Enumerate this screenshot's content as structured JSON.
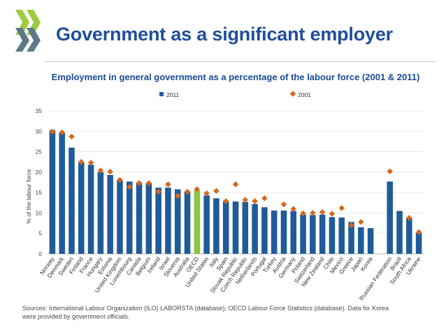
{
  "slide": {
    "title": "Government as a significant employer",
    "source": "Sources: International Labour Organization (ILO) LABORSTA (database); OECD Labour Force Statistics (database). Data for Korea were provided by government officials."
  },
  "colors": {
    "bar": "#1f5b99",
    "bar_highlight": "#8cc540",
    "marker": "#d2691e",
    "title": "#1f4e9b",
    "chart_title": "#1a4a9a"
  },
  "chart_data": {
    "type": "bar",
    "title": "Employment in general government as a percentage of the labour force (2001 & 2011)",
    "ylabel": "% of the labour force",
    "xlabel": "",
    "ylim": [
      0,
      35
    ],
    "yticks": [
      0,
      5,
      10,
      15,
      20,
      25,
      30,
      35
    ],
    "grid": true,
    "legend_position": "top",
    "highlight_category": "OECD",
    "categories": [
      "Norway",
      "Denmark",
      "Sweden",
      "Finland",
      "France",
      "Hungary",
      "Estonia",
      "United Kingdom",
      "Luxembourg",
      "Canada",
      "Belgium",
      "Ireland",
      "Israel",
      "Slovenia",
      "Australia",
      "OECD",
      "United States",
      "Italy",
      "Spain",
      "Slovak Republic",
      "Czech Republic",
      "Netherlands",
      "Portugal",
      "Turkey",
      "Austria",
      "Germany",
      "Poland",
      "Switzerland",
      "New Zealand",
      "Chile",
      "Mexico",
      "Greece",
      "Japan",
      "Korea",
      "",
      "Russian Federation",
      "Brazil",
      "South Africa",
      "Ukraine"
    ],
    "series": [
      {
        "name": "2011",
        "kind": "bar",
        "values": [
          30.3,
          29.6,
          26.0,
          22.3,
          21.8,
          20.0,
          19.3,
          18.0,
          17.7,
          17.5,
          17.3,
          16.2,
          16.2,
          15.8,
          15.3,
          15.5,
          14.3,
          13.6,
          12.9,
          12.8,
          12.7,
          12.2,
          11.4,
          10.6,
          10.6,
          10.5,
          9.6,
          9.5,
          9.6,
          9.0,
          8.9,
          7.8,
          6.5,
          6.3,
          null,
          17.7,
          10.5,
          8.9,
          5.1
        ]
      },
      {
        "name": "2001",
        "kind": "marker",
        "values": [
          29.9,
          29.7,
          28.7,
          22.5,
          22.3,
          20.4,
          20.1,
          18.1,
          16.4,
          17.3,
          17.3,
          15.2,
          17.0,
          14.2,
          15.2,
          15.8,
          14.8,
          15.4,
          12.9,
          17.0,
          13.2,
          12.9,
          13.6,
          null,
          12.1,
          11.0,
          9.9,
          10.0,
          10.2,
          9.8,
          11.2,
          7.0,
          7.8,
          null,
          null,
          20.2,
          null,
          8.8,
          5.3
        ]
      }
    ]
  }
}
